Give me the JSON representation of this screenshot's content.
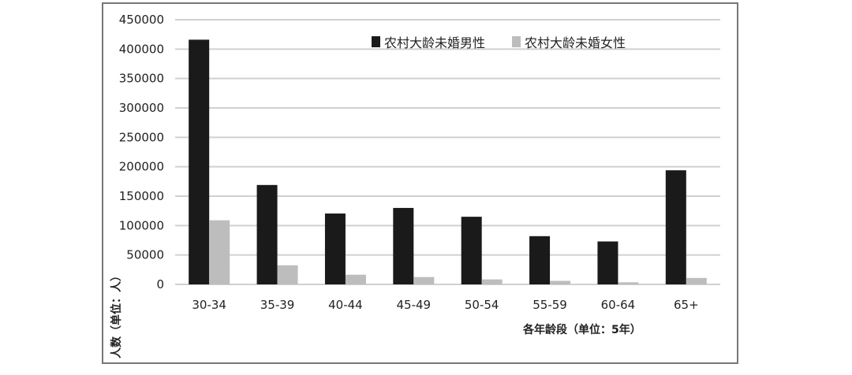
{
  "chart_data": {
    "type": "bar",
    "categories": [
      "30-34",
      "35-39",
      "40-44",
      "45-49",
      "50-54",
      "55-59",
      "60-64",
      "65+"
    ],
    "series": [
      {
        "name": "农村大龄未婚男性",
        "color": "#1a1a1a",
        "values": [
          416000,
          169000,
          120500,
          130000,
          115000,
          82000,
          73000,
          194000
        ]
      },
      {
        "name": "农村大龄未婚女性",
        "color": "#bdbdbd",
        "values": [
          109000,
          32500,
          16500,
          12500,
          8500,
          6000,
          3600,
          11000
        ]
      }
    ],
    "xlabel": "各年龄段（单位：5年）",
    "ylabel": "人数（单位：人）",
    "ylim": [
      0,
      450000
    ],
    "yticks": [
      "0",
      "50000",
      "100000",
      "150000",
      "200000",
      "250000",
      "300000",
      "350000",
      "400000",
      "450000"
    ],
    "grid": true,
    "legend": "top-right"
  }
}
